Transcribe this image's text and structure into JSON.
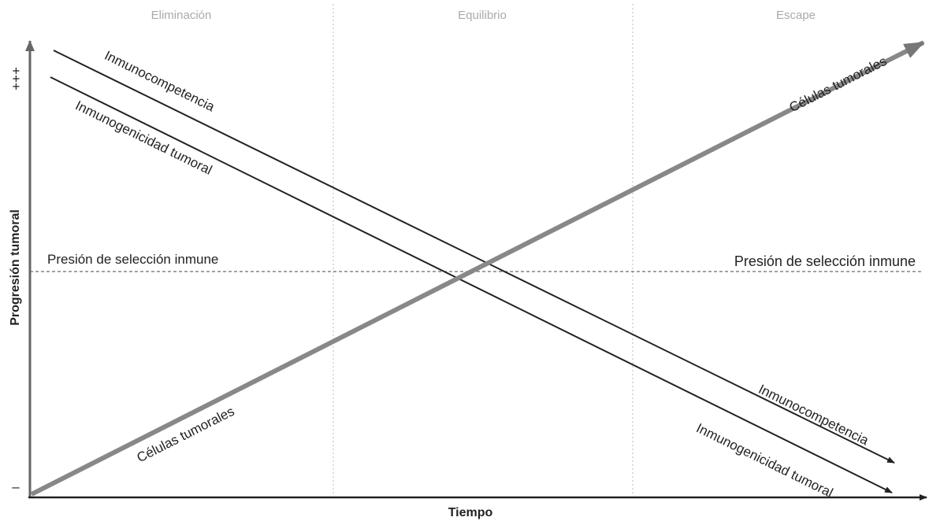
{
  "phases": [
    "Eliminación",
    "Equilibrio",
    "Escape"
  ],
  "axes": {
    "x_label": "Tiempo",
    "y_label": "Progresión tumoral",
    "y_top": "+++",
    "y_bottom": "–"
  },
  "threshold": {
    "label_left": "Presión de selección inmune",
    "label_right": "Presión de selección inmune"
  },
  "lines": [
    {
      "label_start": "Inmunocompetencia",
      "label_end": "Inmunocompetencia"
    },
    {
      "label_start": "Inmunogenicidad tumoral",
      "label_end": "Inmunogenicidad tumoral"
    },
    {
      "label_start": "Células tumorales",
      "label_end": "Células tumorales"
    }
  ]
}
